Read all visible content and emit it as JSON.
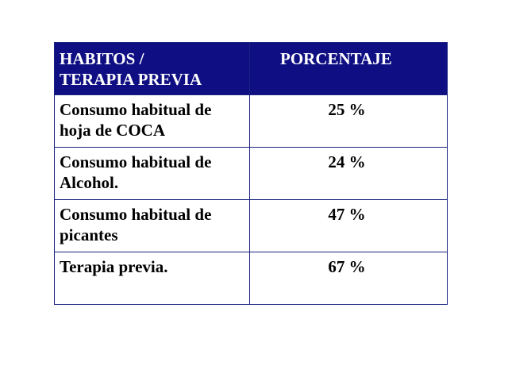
{
  "table": {
    "headers": [
      [
        "HABITOS /",
        "TERAPIA PREVIA"
      ],
      [
        "PORCENTAJE"
      ]
    ],
    "rows": [
      {
        "label": [
          "Consumo habitual de",
          "hoja de COCA"
        ],
        "value": "25 %"
      },
      {
        "label": [
          "Consumo habitual de",
          "Alcohol."
        ],
        "value": "24 %"
      },
      {
        "label": [
          "Consumo habitual de",
          "picantes"
        ],
        "value": "47 %"
      },
      {
        "label": [
          "Terapia previa."
        ],
        "value": "67 %"
      }
    ]
  },
  "colors": {
    "header_background": "#0f0f83",
    "header_text": "#ffffff",
    "border": "#1a237e",
    "body_text": "#000000"
  }
}
